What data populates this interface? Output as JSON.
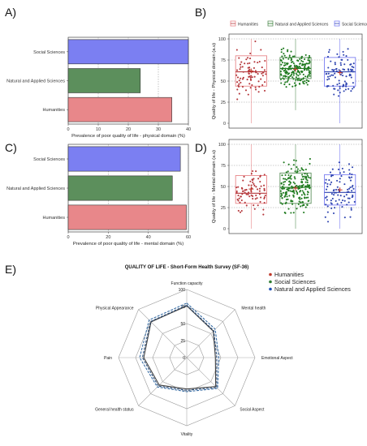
{
  "panels": {
    "A": "A)",
    "B": "B)",
    "C": "C)",
    "D": "D)",
    "E": "E)"
  },
  "colors": {
    "humanities": "#e8878a",
    "natural": "#5c8f5c",
    "social": "#7b7ff2",
    "humanities_dot": "#b5383c",
    "natural_dot": "#1f7a1f",
    "social_dot": "#2f45b0"
  },
  "chart_data": [
    {
      "type": "bar",
      "orientation": "horizontal",
      "categories": [
        "Social Sciences",
        "Natural and Applied Sciences",
        "Humanities"
      ],
      "values": [
        40,
        24,
        34.5
      ],
      "xlabel": "Prevalence of poor quality of life - physical domain (%)",
      "xlim": [
        0,
        40
      ],
      "xticks": [
        "0",
        "10",
        "20",
        "30",
        "40"
      ]
    },
    {
      "type": "scatter",
      "subtype": "box-jitter",
      "categories": [
        "Humanities",
        "Natural and Applied Sciences",
        "Social Sciences"
      ],
      "legend": [
        "Humanities",
        "Natural and Applied Sciences",
        "Social Sciences"
      ],
      "ylabel": "Quality of life - Physical domain (a.u)",
      "ylim": [
        0,
        100
      ],
      "yticks": [
        "0",
        "25",
        "50",
        "75",
        "100"
      ],
      "box": [
        {
          "q1": 44,
          "median": 61,
          "q3": 80,
          "mean": 62
        },
        {
          "q1": 53,
          "median": 65,
          "q3": 78,
          "mean": 64
        },
        {
          "q1": 44,
          "median": 61,
          "q3": 78,
          "mean": 60
        }
      ],
      "point_counts": [
        80,
        190,
        90
      ]
    },
    {
      "type": "bar",
      "orientation": "horizontal",
      "categories": [
        "Social Sciences",
        "Natural and Applied Sciences",
        "Humanities"
      ],
      "values": [
        56,
        52,
        59
      ],
      "xlabel": "Prevalence of poor quality of life - mental domain (%)",
      "xlim": [
        0,
        60
      ],
      "xticks": [
        "0",
        "20",
        "40",
        "60"
      ]
    },
    {
      "type": "scatter",
      "subtype": "box-jitter",
      "categories": [
        "Humanities",
        "Natural and Applied Sciences",
        "Social Sciences"
      ],
      "ylabel": "Quality of life - Mental domain (a.u)",
      "ylim": [
        0,
        100
      ],
      "yticks": [
        "0",
        "25",
        "50",
        "75",
        "100"
      ],
      "box": [
        {
          "q1": 30,
          "median": 42,
          "q3": 63,
          "mean": 47
        },
        {
          "q1": 30,
          "median": 49,
          "q3": 66,
          "mean": 48
        },
        {
          "q1": 28,
          "median": 43,
          "q3": 64,
          "mean": 46
        }
      ],
      "point_counts": [
        80,
        190,
        90
      ]
    },
    {
      "type": "radar",
      "title": "QUALITY OF LIFE - Short-Form Health Survey (SF-36)",
      "axes": [
        "Function capacity",
        "Mental health",
        "Emotional Aspect",
        "Social Aspect",
        "Vitality",
        "General health status",
        "Pain",
        "Physical Appearance"
      ],
      "rlim": [
        0,
        100
      ],
      "rticks": [
        "0",
        "25",
        "50",
        "75",
        "100"
      ],
      "series": [
        {
          "name": "Humanities",
          "values": [
            76,
            55,
            42,
            60,
            46,
            57,
            63,
            74
          ]
        },
        {
          "name": "Social Sciences",
          "values": [
            77,
            56,
            44,
            62,
            48,
            59,
            65,
            75
          ]
        },
        {
          "name": "Natural and Applied Sciences",
          "values": [
            80,
            59,
            47,
            64,
            50,
            61,
            69,
            78
          ]
        }
      ]
    }
  ]
}
